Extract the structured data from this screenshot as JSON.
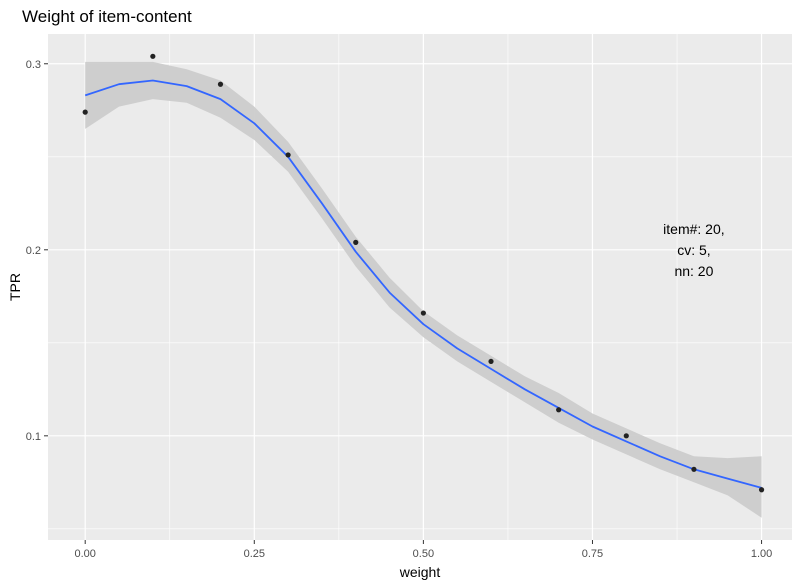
{
  "chart_data": {
    "type": "scatter",
    "title": "Weight of item-content",
    "xlabel": "weight",
    "ylabel": "TPR",
    "xlim": [
      -0.055,
      1.045
    ],
    "ylim": [
      0.044,
      0.316
    ],
    "x_ticks": [
      0.0,
      0.25,
      0.5,
      0.75,
      1.0
    ],
    "x_tick_labels": [
      "0.00",
      "0.25",
      "0.50",
      "0.75",
      "1.00"
    ],
    "y_ticks": [
      0.1,
      0.2,
      0.3
    ],
    "y_tick_labels": [
      "0.1",
      "0.2",
      "0.3"
    ],
    "grid": true,
    "legend": "none",
    "points": {
      "x": [
        0.0,
        0.1,
        0.2,
        0.3,
        0.4,
        0.5,
        0.6,
        0.7,
        0.8,
        0.9,
        1.0
      ],
      "y": [
        0.274,
        0.304,
        0.289,
        0.251,
        0.204,
        0.166,
        0.14,
        0.114,
        0.1,
        0.082,
        0.071
      ]
    },
    "smooth": {
      "x": [
        0.0,
        0.05,
        0.1,
        0.15,
        0.2,
        0.25,
        0.3,
        0.35,
        0.4,
        0.45,
        0.5,
        0.55,
        0.6,
        0.65,
        0.7,
        0.75,
        0.8,
        0.85,
        0.9,
        0.95,
        1.0
      ],
      "y": [
        0.283,
        0.289,
        0.291,
        0.288,
        0.281,
        0.268,
        0.25,
        0.225,
        0.199,
        0.177,
        0.16,
        0.147,
        0.136,
        0.125,
        0.115,
        0.105,
        0.097,
        0.089,
        0.082,
        0.077,
        0.072
      ],
      "lower": [
        0.265,
        0.277,
        0.281,
        0.279,
        0.271,
        0.259,
        0.242,
        0.217,
        0.191,
        0.169,
        0.153,
        0.14,
        0.129,
        0.118,
        0.107,
        0.098,
        0.09,
        0.082,
        0.075,
        0.068,
        0.056
      ],
      "upper": [
        0.301,
        0.301,
        0.301,
        0.297,
        0.291,
        0.277,
        0.258,
        0.233,
        0.207,
        0.185,
        0.167,
        0.154,
        0.143,
        0.132,
        0.123,
        0.112,
        0.104,
        0.096,
        0.089,
        0.088,
        0.089
      ]
    },
    "annotation": [
      "item#: 20,",
      "cv: 5,",
      "nn: 20"
    ],
    "annotation_pos": {
      "x": 0.9,
      "y": 0.2
    },
    "colors": {
      "panel": "#ebebeb",
      "grid": "#ffffff",
      "line": "#3366ff",
      "ribbon": "#cccccc",
      "point": "#222222"
    }
  }
}
